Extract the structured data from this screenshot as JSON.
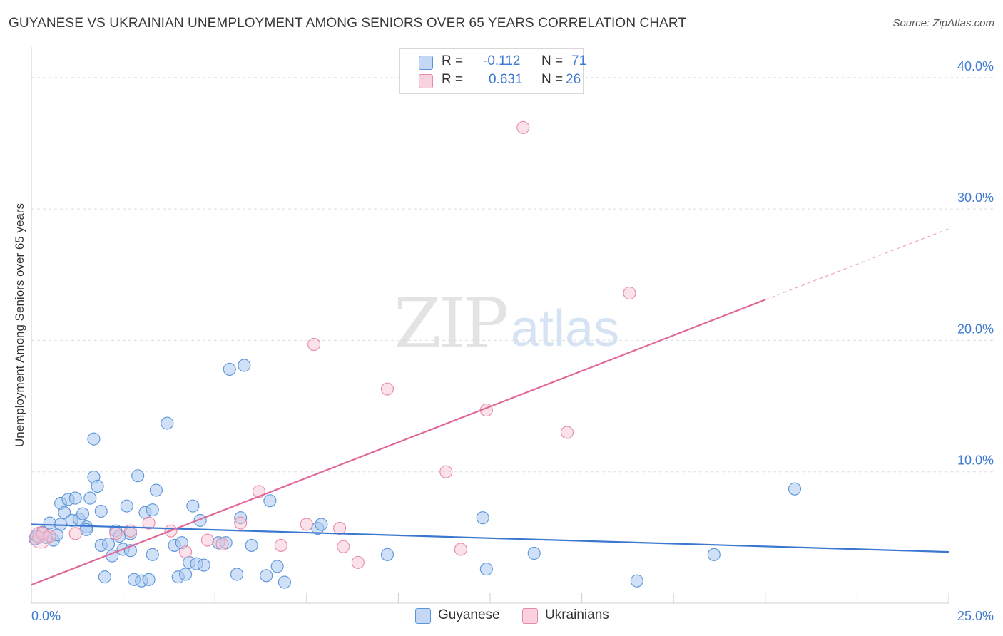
{
  "header": {
    "title": "GUYANESE VS UKRAINIAN UNEMPLOYMENT AMONG SENIORS OVER 65 YEARS CORRELATION CHART",
    "source": "Source: ZipAtlas.com"
  },
  "watermark": {
    "zip": "ZIP",
    "atlas": "atlas"
  },
  "legend": {
    "rows": [
      {
        "r_label": "R =",
        "r_value": "-0.112",
        "n_label": "N =",
        "n_value": "71"
      },
      {
        "r_label": "R =",
        "r_value": "0.631",
        "n_label": "N =",
        "n_value": "26"
      }
    ]
  },
  "bottom_legend": {
    "guyanese": "Guyanese",
    "ukrainians": "Ukrainians"
  },
  "colors": {
    "guyanese_fill": "#a9c8f0",
    "guyanese_stroke": "#5b95d9",
    "guyanese_line": "#3a78d0",
    "ukrainian_fill": "#f7c4d4",
    "ukrainian_stroke": "#e58aa8",
    "ukrainian_line": "#e0699a",
    "tick": "#3f7bd0"
  },
  "chart_data": {
    "type": "scatter",
    "title": "GUYANESE VS UKRAINIAN UNEMPLOYMENT AMONG SENIORS OVER 65 YEARS CORRELATION CHART",
    "xlabel": "",
    "ylabel": "Unemployment Among Seniors over 65 years",
    "xlim": [
      0,
      25
    ],
    "ylim": [
      0,
      42
    ],
    "x_tick_labels": [
      {
        "value": 0,
        "label": "0.0%"
      },
      {
        "value": 25,
        "label": "25.0%"
      }
    ],
    "y_tick_labels": [
      {
        "value": 10,
        "label": "10.0%"
      },
      {
        "value": 20,
        "label": "20.0%"
      },
      {
        "value": 30,
        "label": "30.0%"
      },
      {
        "value": 40,
        "label": "40.0%"
      }
    ],
    "x_minor_ticks": [
      2.5,
      5,
      7.5,
      10,
      12.5,
      15,
      17.5,
      20,
      22.5,
      25
    ],
    "y_gridlines": [
      10,
      20,
      30,
      40
    ],
    "series": [
      {
        "name": "Guyanese",
        "r": -0.112,
        "n": 71,
        "trend": {
          "x0": 0,
          "y0": 6.0,
          "x1": 25,
          "y1": 3.9,
          "dashed_to": null
        },
        "points": [
          [
            0.1,
            4.9
          ],
          [
            0.2,
            5.0
          ],
          [
            0.3,
            5.4
          ],
          [
            0.4,
            5.0
          ],
          [
            0.5,
            6.1
          ],
          [
            0.6,
            4.8
          ],
          [
            0.7,
            5.2
          ],
          [
            0.8,
            6.0
          ],
          [
            0.8,
            7.6
          ],
          [
            0.9,
            6.9
          ],
          [
            1.0,
            7.9
          ],
          [
            1.1,
            6.3
          ],
          [
            1.2,
            8.0
          ],
          [
            1.3,
            6.4
          ],
          [
            1.4,
            6.8
          ],
          [
            1.5,
            5.8
          ],
          [
            1.5,
            5.6
          ],
          [
            1.6,
            8.0
          ],
          [
            1.7,
            9.6
          ],
          [
            1.7,
            12.5
          ],
          [
            1.8,
            8.9
          ],
          [
            1.9,
            4.4
          ],
          [
            1.9,
            7.0
          ],
          [
            2.0,
            2.0
          ],
          [
            2.1,
            4.5
          ],
          [
            2.2,
            3.6
          ],
          [
            2.3,
            5.5
          ],
          [
            2.4,
            5.1
          ],
          [
            2.5,
            4.1
          ],
          [
            2.6,
            7.4
          ],
          [
            2.7,
            5.3
          ],
          [
            2.7,
            4.0
          ],
          [
            2.8,
            1.8
          ],
          [
            2.9,
            9.7
          ],
          [
            3.0,
            1.7
          ],
          [
            3.1,
            6.9
          ],
          [
            3.2,
            1.8
          ],
          [
            3.3,
            7.1
          ],
          [
            3.3,
            3.7
          ],
          [
            3.4,
            8.6
          ],
          [
            3.7,
            13.7
          ],
          [
            3.9,
            4.4
          ],
          [
            4.0,
            2.0
          ],
          [
            4.1,
            4.6
          ],
          [
            4.2,
            2.2
          ],
          [
            4.3,
            3.1
          ],
          [
            4.4,
            7.4
          ],
          [
            4.5,
            3.0
          ],
          [
            4.6,
            6.3
          ],
          [
            4.7,
            2.9
          ],
          [
            5.1,
            4.6
          ],
          [
            5.3,
            4.6
          ],
          [
            5.4,
            17.8
          ],
          [
            5.6,
            2.2
          ],
          [
            5.7,
            6.5
          ],
          [
            5.8,
            18.1
          ],
          [
            6.0,
            4.4
          ],
          [
            6.4,
            2.1
          ],
          [
            6.5,
            7.8
          ],
          [
            6.7,
            2.8
          ],
          [
            6.9,
            1.6
          ],
          [
            7.8,
            5.7
          ],
          [
            7.9,
            6.0
          ],
          [
            9.7,
            3.7
          ],
          [
            12.3,
            6.5
          ],
          [
            12.4,
            2.6
          ],
          [
            13.7,
            3.8
          ],
          [
            16.5,
            1.7
          ],
          [
            18.6,
            3.7
          ],
          [
            20.8,
            8.7
          ],
          [
            0.15,
            5.1
          ]
        ]
      },
      {
        "name": "Ukrainians",
        "r": 0.631,
        "n": 26,
        "trend": {
          "x0": 0,
          "y0": 1.4,
          "x1": 20,
          "y1": 23.1,
          "dashed_to": {
            "x": 25,
            "y": 28.5
          }
        },
        "points": [
          [
            0.2,
            5.0
          ],
          [
            0.3,
            5.3
          ],
          [
            0.5,
            5.1
          ],
          [
            1.2,
            5.3
          ],
          [
            2.3,
            5.3
          ],
          [
            2.7,
            5.5
          ],
          [
            3.2,
            6.1
          ],
          [
            3.8,
            5.5
          ],
          [
            4.2,
            3.9
          ],
          [
            4.8,
            4.8
          ],
          [
            5.2,
            4.5
          ],
          [
            5.7,
            6.1
          ],
          [
            6.2,
            8.5
          ],
          [
            6.8,
            4.4
          ],
          [
            7.5,
            6.0
          ],
          [
            7.7,
            19.7
          ],
          [
            8.4,
            5.7
          ],
          [
            8.5,
            4.3
          ],
          [
            8.9,
            3.1
          ],
          [
            9.7,
            16.3
          ],
          [
            11.3,
            10.0
          ],
          [
            11.7,
            4.1
          ],
          [
            12.4,
            14.7
          ],
          [
            13.4,
            36.2
          ],
          [
            14.6,
            13.0
          ],
          [
            16.3,
            23.6
          ]
        ]
      }
    ]
  }
}
